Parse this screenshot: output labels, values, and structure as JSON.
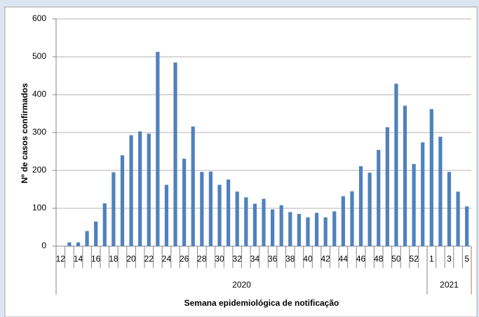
{
  "chart_data": {
    "type": "bar",
    "color": "#4f81bd",
    "ylabel": "Nº de casos confirmados",
    "xlabel": "Semana epidemiológica de notificação",
    "ylim": [
      0,
      600
    ],
    "yticks": [
      0,
      100,
      200,
      300,
      400,
      500,
      600
    ],
    "grid": true,
    "groups": [
      {
        "label": "2020",
        "categories": [
          "12",
          null,
          "14",
          null,
          "16",
          null,
          "18",
          null,
          "20",
          null,
          "22",
          null,
          "24",
          null,
          "26",
          null,
          "28",
          null,
          "30",
          null,
          "32",
          null,
          "34",
          null,
          "36",
          null,
          "38",
          null,
          "40",
          null,
          "42",
          null,
          "44",
          null,
          "46",
          null,
          "48",
          null,
          "50",
          null,
          "52",
          null
        ],
        "values": [
          0,
          10,
          10,
          40,
          65,
          113,
          195,
          240,
          293,
          303,
          297,
          513,
          162,
          485,
          231,
          316,
          196,
          197,
          162,
          176,
          144,
          129,
          112,
          125,
          97,
          108,
          90,
          85,
          76,
          88,
          76,
          92,
          132,
          145,
          211,
          194,
          254,
          314,
          429,
          371,
          217,
          274
        ]
      },
      {
        "label": "2021",
        "categories": [
          "1",
          null,
          "3",
          null,
          "5"
        ],
        "values": [
          362,
          289,
          196,
          144,
          105
        ]
      }
    ]
  }
}
